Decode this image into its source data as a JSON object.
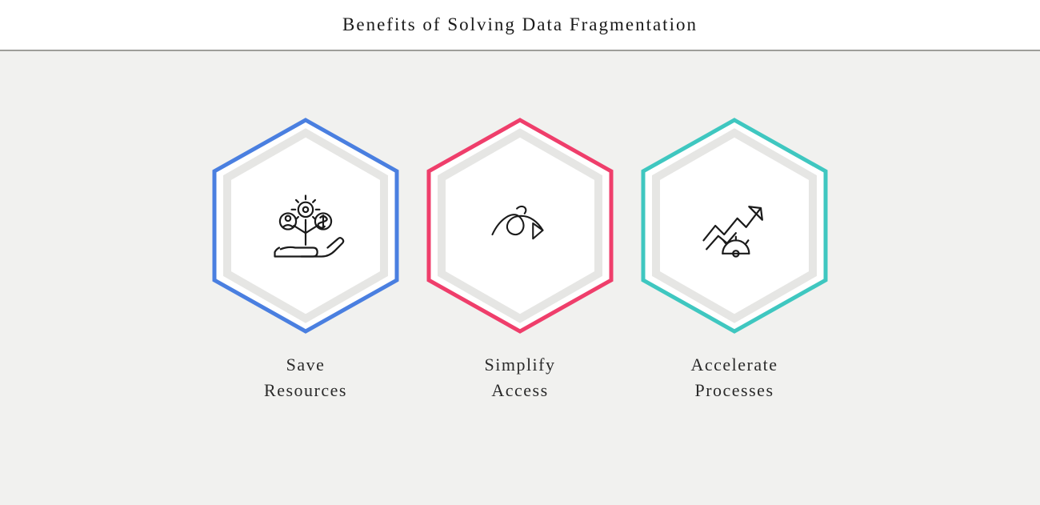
{
  "title": "Benefits of Solving Data Fragmentation",
  "colors": {
    "page_bg": "#f1f1ef",
    "header_bg": "#ffffff",
    "divider": "#9e9e99",
    "text": "#1a1a1a",
    "label": "#2a2a2a",
    "hex_inner_fill": "#ffffff",
    "hex_ring": "#e6e6e4",
    "icon_stroke": "#1a1a1a"
  },
  "layout": {
    "title_fontsize": 23,
    "title_letter_spacing": 2,
    "label_fontsize": 22,
    "label_letter_spacing": 1.5,
    "hex_width": 240,
    "hex_height": 272,
    "card_gap": 28,
    "content_top_pad": 82,
    "outer_stroke_width": 5,
    "ring_stroke_width": 10,
    "icon_stroke_width": 2.4
  },
  "cards": [
    {
      "label": "Save\nResources",
      "icon": "resources-icon",
      "border": "#4a7fe0"
    },
    {
      "label": "Simplify\nAccess",
      "icon": "simplify-icon",
      "border": "#ef3e6b"
    },
    {
      "label": "Accelerate\nProcesses",
      "icon": "accelerate-icon",
      "border": "#3fc7c0"
    }
  ]
}
